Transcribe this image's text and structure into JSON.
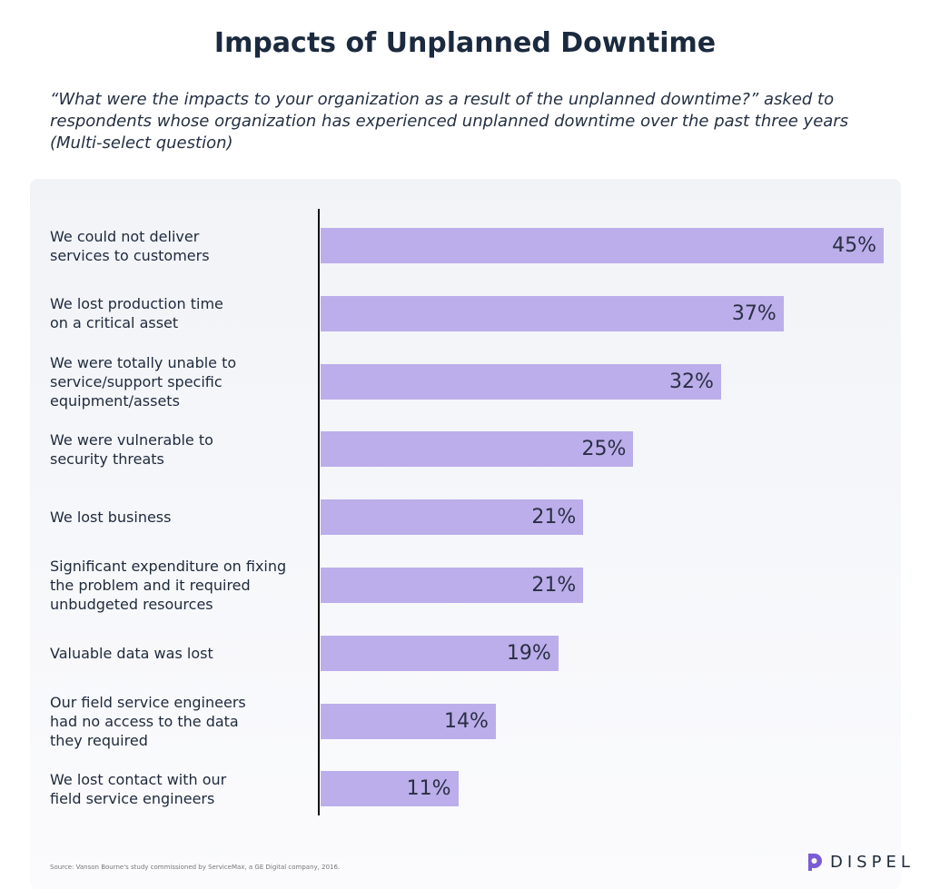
{
  "chart_data": {
    "type": "bar",
    "orientation": "horizontal",
    "title": "Impacts of Unplanned Downtime",
    "subtitle": "“What were the impacts to your organization as a result of the unplanned downtime?” asked to respondents whose organization has experienced unplanned downtime over the past three years (Multi-select question)",
    "categories": [
      "We could not deliver\nservices to customers",
      "We lost production time\non a critical asset",
      "We were totally unable to\nservice/support specific\nequipment/assets",
      "We were vulnerable to\nsecurity threats",
      "We lost business",
      "Significant expenditure on fixing\nthe problem and it required\nunbudgeted resources",
      "Valuable data was lost",
      "Our field service engineers\nhad no access to the data\nthey required",
      "We lost contact with our\nfield service engineers"
    ],
    "values": [
      45,
      37,
      32,
      25,
      21,
      21,
      19,
      14,
      11
    ],
    "value_labels": [
      "45%",
      "37%",
      "32%",
      "25%",
      "21%",
      "21%",
      "19%",
      "14%",
      "11%"
    ],
    "color": "#bcaeea",
    "source": "Source: Vanson Bourne's study commissioned by ServiceMax, a GE Digital company, 2016.",
    "logo": "DISPEL"
  }
}
